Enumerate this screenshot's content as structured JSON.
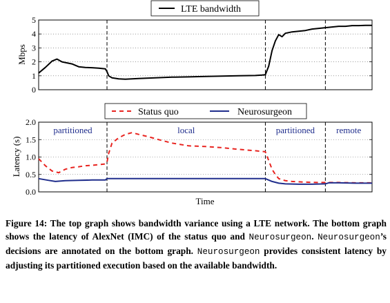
{
  "chart_data": [
    {
      "type": "line",
      "ylabel": "Mbps",
      "xlabel": "",
      "ylim": [
        0,
        5
      ],
      "yticks": [
        0,
        1,
        2,
        3,
        4,
        5
      ],
      "xlim": [
        0,
        100
      ],
      "grid": "horizontal dotted",
      "legend_position": "top-center",
      "phase_boundaries": [
        20.5,
        68,
        86
      ],
      "series": [
        {
          "name": "LTE bandwidth",
          "color": "#000000",
          "style": "solid",
          "x": [
            0,
            2,
            4,
            5.5,
            7,
            8,
            10,
            12,
            14,
            16,
            18,
            20,
            20.5,
            21,
            22,
            24,
            26,
            30,
            35,
            40,
            45,
            50,
            55,
            60,
            65,
            67,
            68,
            69,
            70,
            71,
            72,
            73,
            74,
            76,
            78,
            80,
            82,
            84,
            86,
            88,
            90,
            92,
            94,
            96,
            98,
            100
          ],
          "y": [
            1.2,
            1.6,
            2.05,
            2.2,
            2.0,
            1.95,
            1.85,
            1.65,
            1.6,
            1.58,
            1.55,
            1.5,
            1.3,
            1.0,
            0.85,
            0.78,
            0.75,
            0.8,
            0.85,
            0.9,
            0.92,
            0.95,
            0.98,
            1.0,
            1.02,
            1.05,
            1.08,
            1.7,
            2.8,
            3.5,
            3.95,
            3.8,
            4.05,
            4.15,
            4.2,
            4.25,
            4.35,
            4.4,
            4.45,
            4.5,
            4.55,
            4.55,
            4.6,
            4.6,
            4.62,
            4.62
          ]
        }
      ]
    },
    {
      "type": "line",
      "ylabel": "Latency (s)",
      "xlabel": "Time",
      "ylim": [
        0,
        2.0
      ],
      "yticks": [
        "0.0",
        "0.5",
        "1.0",
        "1.5",
        "2.0"
      ],
      "xlim": [
        0,
        100
      ],
      "grid": "horizontal dotted",
      "legend_position": "top-center",
      "phase_boundaries": [
        20.5,
        68,
        86
      ],
      "annotations": [
        "partitioned",
        "local",
        "partitioned",
        "remote"
      ],
      "series": [
        {
          "name": "Status quo",
          "color": "#e8231f",
          "style": "dashed",
          "x": [
            0,
            2,
            4,
            6,
            8,
            10,
            12,
            14,
            16,
            18,
            20,
            20.5,
            21,
            22,
            24,
            26,
            28,
            30,
            33,
            36,
            40,
            45,
            50,
            55,
            60,
            65,
            68,
            69,
            70,
            71,
            72,
            74,
            76,
            80,
            84,
            86,
            90,
            95,
            100
          ],
          "y": [
            0.95,
            0.75,
            0.6,
            0.55,
            0.65,
            0.7,
            0.72,
            0.75,
            0.76,
            0.78,
            0.8,
            0.85,
            1.1,
            1.4,
            1.55,
            1.65,
            1.7,
            1.65,
            1.58,
            1.5,
            1.4,
            1.32,
            1.3,
            1.27,
            1.22,
            1.18,
            1.15,
            0.9,
            0.65,
            0.5,
            0.38,
            0.32,
            0.3,
            0.28,
            0.27,
            0.27,
            0.27,
            0.26,
            0.26
          ]
        },
        {
          "name": "Neurosurgeon",
          "color": "#1f2d8c",
          "style": "solid",
          "x": [
            0,
            3,
            5,
            8,
            12,
            16,
            20,
            20.5,
            22,
            30,
            40,
            50,
            60,
            68,
            70,
            72,
            74,
            78,
            82,
            86,
            87,
            90,
            95,
            100
          ],
          "y": [
            0.38,
            0.33,
            0.3,
            0.32,
            0.33,
            0.34,
            0.34,
            0.38,
            0.38,
            0.38,
            0.38,
            0.38,
            0.38,
            0.38,
            0.3,
            0.25,
            0.23,
            0.22,
            0.22,
            0.23,
            0.26,
            0.26,
            0.25,
            0.25
          ]
        }
      ]
    }
  ],
  "caption": {
    "parts": [
      {
        "text": "Figure 14: The top graph shows bandwidth variance using a LTE network. The bottom graph shows the latency of AlexNet (IMC) of the status quo and ",
        "mono": false
      },
      {
        "text": "Neurosurgeon",
        "mono": true
      },
      {
        "text": ". ",
        "mono": false
      },
      {
        "text": "Neurosurgeon",
        "mono": true
      },
      {
        "text": "’s decisions are annotated on the bottom graph. ",
        "mono": false
      },
      {
        "text": "Neurosurgeon",
        "mono": true
      },
      {
        "text": " provides consistent latency by adjusting its partitioned execution based on the available bandwidth.",
        "mono": false
      }
    ]
  }
}
